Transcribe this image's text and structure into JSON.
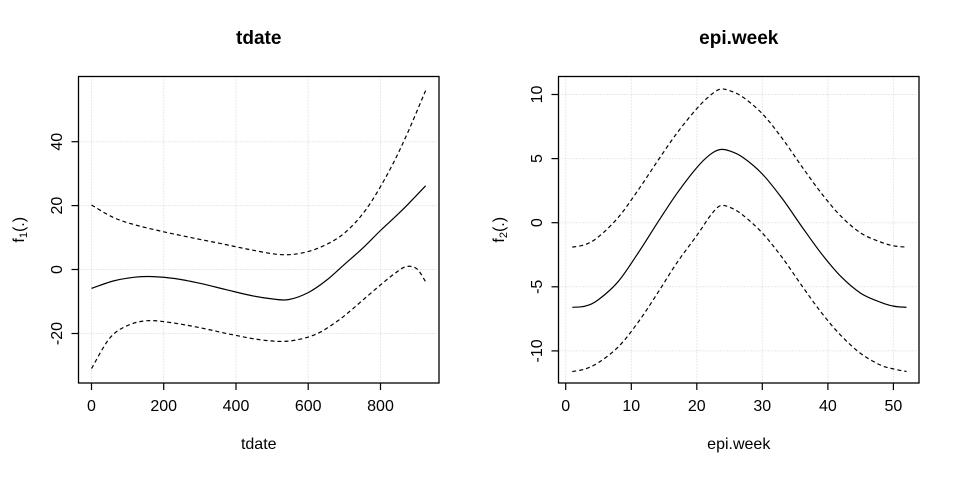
{
  "colors": {
    "background": "#ffffff",
    "curve": "#000000",
    "grid": "#d3d3d3",
    "frame": "#000000",
    "text": "#000000"
  },
  "chart_data": [
    {
      "type": "line",
      "title": "tdate",
      "xlabel": "tdate",
      "ylabel": {
        "base": "f",
        "sub": "1",
        "suffix": "(.)"
      },
      "xlim": [
        -36,
        962
      ],
      "ylim": [
        -35.5,
        60.4
      ],
      "xticks": [
        0,
        200,
        400,
        600,
        800
      ],
      "yticks": [
        -20,
        0,
        20,
        40
      ],
      "grid": true,
      "legend": "none",
      "series": [
        {
          "name": "fit",
          "line": "solid",
          "points": [
            [
              0,
              -5.9
            ],
            [
              60,
              -3.6
            ],
            [
              120,
              -2.4
            ],
            [
              170,
              -2.2
            ],
            [
              230,
              -2.8
            ],
            [
              300,
              -4.3
            ],
            [
              370,
              -6.2
            ],
            [
              440,
              -8.1
            ],
            [
              500,
              -9.2
            ],
            [
              545,
              -9.4
            ],
            [
              600,
              -7.2
            ],
            [
              650,
              -3.4
            ],
            [
              700,
              1.6
            ],
            [
              750,
              6.6
            ],
            [
              800,
              12.2
            ],
            [
              860,
              18.6
            ],
            [
              925,
              26.2
            ]
          ]
        },
        {
          "name": "upper-ci",
          "line": "dashed",
          "points": [
            [
              0,
              20.2
            ],
            [
              60,
              16.3
            ],
            [
              120,
              14.0
            ],
            [
              200,
              11.8
            ],
            [
              280,
              9.9
            ],
            [
              360,
              8.1
            ],
            [
              440,
              6.2
            ],
            [
              520,
              4.7
            ],
            [
              580,
              5.1
            ],
            [
              640,
              7.3
            ],
            [
              700,
              11.4
            ],
            [
              760,
              18.8
            ],
            [
              820,
              30.0
            ],
            [
              870,
              41.5
            ],
            [
              925,
              56.0
            ]
          ]
        },
        {
          "name": "lower-ci",
          "line": "dashed",
          "points": [
            [
              0,
              -31.0
            ],
            [
              50,
              -21.5
            ],
            [
              100,
              -17.5
            ],
            [
              155,
              -16.0
            ],
            [
              220,
              -16.6
            ],
            [
              300,
              -18.2
            ],
            [
              390,
              -20.4
            ],
            [
              470,
              -22.0
            ],
            [
              545,
              -22.4
            ],
            [
              620,
              -20.3
            ],
            [
              680,
              -16.2
            ],
            [
              720,
              -12.6
            ],
            [
              760,
              -8.7
            ],
            [
              800,
              -4.8
            ],
            [
              840,
              -1.2
            ],
            [
              870,
              0.9
            ],
            [
              900,
              0.3
            ],
            [
              925,
              -3.8
            ]
          ]
        }
      ]
    },
    {
      "type": "line",
      "title": "epi.week",
      "xlabel": "epi.week",
      "ylabel": {
        "base": "f",
        "sub": "2",
        "suffix": "(.)"
      },
      "xlim": [
        -1.1,
        53.9
      ],
      "ylim": [
        -12.5,
        11.4
      ],
      "xticks": [
        0,
        10,
        20,
        30,
        40,
        50
      ],
      "yticks": [
        -10,
        -5,
        0,
        5,
        10
      ],
      "grid": true,
      "legend": "none",
      "series": [
        {
          "name": "fit",
          "line": "solid",
          "points": [
            [
              1,
              -6.6
            ],
            [
              3,
              -6.5
            ],
            [
              5,
              -6.0
            ],
            [
              8,
              -4.6
            ],
            [
              11,
              -2.4
            ],
            [
              14,
              0.0
            ],
            [
              17,
              2.3
            ],
            [
              20,
              4.3
            ],
            [
              22,
              5.3
            ],
            [
              23.5,
              5.7
            ],
            [
              25,
              5.6
            ],
            [
              27,
              5.1
            ],
            [
              30,
              3.8
            ],
            [
              33,
              1.9
            ],
            [
              36,
              -0.3
            ],
            [
              39,
              -2.4
            ],
            [
              42,
              -4.2
            ],
            [
              45,
              -5.5
            ],
            [
              48,
              -6.2
            ],
            [
              50,
              -6.5
            ],
            [
              52,
              -6.6
            ]
          ]
        },
        {
          "name": "upper-ci",
          "line": "dashed",
          "points": [
            [
              1,
              -1.9
            ],
            [
              3,
              -1.7
            ],
            [
              5,
              -1.1
            ],
            [
              8,
              0.4
            ],
            [
              11,
              2.5
            ],
            [
              14,
              4.8
            ],
            [
              17,
              7.0
            ],
            [
              20,
              8.9
            ],
            [
              22,
              9.9
            ],
            [
              23.5,
              10.4
            ],
            [
              25,
              10.3
            ],
            [
              27,
              9.8
            ],
            [
              30,
              8.5
            ],
            [
              33,
              6.6
            ],
            [
              36,
              4.4
            ],
            [
              39,
              2.3
            ],
            [
              42,
              0.5
            ],
            [
              45,
              -0.8
            ],
            [
              48,
              -1.5
            ],
            [
              50,
              -1.8
            ],
            [
              52,
              -1.9
            ]
          ]
        },
        {
          "name": "lower-ci",
          "line": "dashed",
          "points": [
            [
              1,
              -11.6
            ],
            [
              3,
              -11.4
            ],
            [
              5,
              -10.9
            ],
            [
              8,
              -9.7
            ],
            [
              11,
              -7.8
            ],
            [
              14,
              -5.5
            ],
            [
              17,
              -3.1
            ],
            [
              20,
              -1.0
            ],
            [
              22,
              0.5
            ],
            [
              23.5,
              1.3
            ],
            [
              25,
              1.2
            ],
            [
              27,
              0.6
            ],
            [
              30,
              -0.8
            ],
            [
              33,
              -2.7
            ],
            [
              36,
              -4.9
            ],
            [
              39,
              -7.0
            ],
            [
              42,
              -8.8
            ],
            [
              45,
              -10.2
            ],
            [
              48,
              -11.1
            ],
            [
              50,
              -11.4
            ],
            [
              52,
              -11.6
            ]
          ]
        }
      ]
    }
  ]
}
